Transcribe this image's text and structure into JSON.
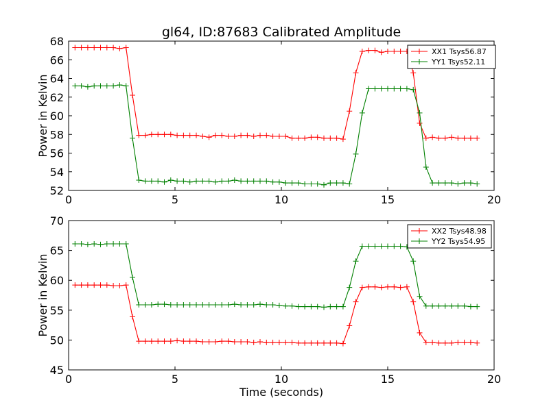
{
  "title": "gl64, ID:87683 Calibrated Amplitude",
  "colors": {
    "red": "#ff0000",
    "green": "#008000"
  },
  "chart_data": [
    {
      "type": "line",
      "xlim": [
        0,
        20
      ],
      "ylim": [
        52,
        68
      ],
      "xticks": [
        0,
        5,
        10,
        15,
        20
      ],
      "yticks": [
        52,
        54,
        56,
        58,
        60,
        62,
        64,
        66,
        68
      ],
      "ylabel": "Power in Kelvin",
      "xlabel": "",
      "legend": "top-right",
      "x": [
        0.3,
        0.6,
        0.9,
        1.2,
        1.5,
        1.8,
        2.1,
        2.4,
        2.7,
        3.0,
        3.3,
        3.6,
        3.9,
        4.2,
        4.5,
        4.8,
        5.1,
        5.4,
        5.7,
        6.0,
        6.3,
        6.6,
        6.9,
        7.2,
        7.5,
        7.8,
        8.1,
        8.4,
        8.7,
        9.0,
        9.3,
        9.6,
        9.9,
        10.2,
        10.5,
        10.8,
        11.1,
        11.4,
        11.7,
        12.0,
        12.3,
        12.6,
        12.9,
        13.2,
        13.5,
        13.8,
        14.1,
        14.4,
        14.7,
        15.0,
        15.3,
        15.6,
        15.9,
        16.2,
        16.5,
        16.8,
        17.1,
        17.4,
        17.7,
        18.0,
        18.3,
        18.6,
        18.9,
        19.2
      ],
      "series": [
        {
          "name": "XX1 Tsys56.87",
          "color": "#ff0000",
          "values": [
            67.3,
            67.3,
            67.3,
            67.3,
            67.3,
            67.3,
            67.3,
            67.2,
            67.3,
            62.2,
            57.9,
            57.9,
            58.0,
            58.0,
            58.0,
            58.0,
            57.9,
            57.9,
            57.9,
            57.9,
            57.8,
            57.7,
            57.9,
            57.9,
            57.8,
            57.8,
            57.9,
            57.9,
            57.8,
            57.9,
            57.9,
            57.8,
            57.8,
            57.8,
            57.6,
            57.6,
            57.6,
            57.7,
            57.7,
            57.6,
            57.6,
            57.6,
            57.5,
            60.5,
            64.6,
            66.9,
            67.0,
            67.0,
            66.8,
            66.9,
            66.9,
            66.9,
            66.9,
            64.6,
            59.2,
            57.6,
            57.7,
            57.6,
            57.6,
            57.7,
            57.6,
            57.6,
            57.6,
            57.6
          ]
        },
        {
          "name": "YY1 Tsys52.11",
          "color": "#008000",
          "values": [
            63.2,
            63.2,
            63.1,
            63.2,
            63.2,
            63.2,
            63.2,
            63.3,
            63.2,
            57.6,
            53.1,
            53.0,
            53.0,
            53.0,
            52.9,
            53.1,
            53.0,
            53.0,
            52.9,
            53.0,
            53.0,
            53.0,
            52.9,
            53.0,
            53.0,
            53.1,
            53.0,
            53.0,
            53.0,
            53.0,
            53.0,
            52.9,
            52.9,
            52.8,
            52.8,
            52.8,
            52.7,
            52.7,
            52.7,
            52.6,
            52.8,
            52.8,
            52.8,
            52.7,
            55.9,
            60.3,
            62.9,
            62.9,
            62.9,
            62.9,
            62.9,
            62.9,
            62.9,
            62.8,
            60.3,
            54.5,
            52.8,
            52.8,
            52.8,
            52.8,
            52.7,
            52.8,
            52.8,
            52.7
          ]
        }
      ]
    },
    {
      "type": "line",
      "xlim": [
        0,
        20
      ],
      "ylim": [
        45,
        70
      ],
      "xticks": [
        0,
        5,
        10,
        15,
        20
      ],
      "yticks": [
        45,
        50,
        55,
        60,
        65,
        70
      ],
      "ylabel": "Power in Kelvin",
      "xlabel": "Time (seconds)",
      "legend": "top-right",
      "x": [
        0.3,
        0.6,
        0.9,
        1.2,
        1.5,
        1.8,
        2.1,
        2.4,
        2.7,
        3.0,
        3.3,
        3.6,
        3.9,
        4.2,
        4.5,
        4.8,
        5.1,
        5.4,
        5.7,
        6.0,
        6.3,
        6.6,
        6.9,
        7.2,
        7.5,
        7.8,
        8.1,
        8.4,
        8.7,
        9.0,
        9.3,
        9.6,
        9.9,
        10.2,
        10.5,
        10.8,
        11.1,
        11.4,
        11.7,
        12.0,
        12.3,
        12.6,
        12.9,
        13.2,
        13.5,
        13.8,
        14.1,
        14.4,
        14.7,
        15.0,
        15.3,
        15.6,
        15.9,
        16.2,
        16.5,
        16.8,
        17.1,
        17.4,
        17.7,
        18.0,
        18.3,
        18.6,
        18.9,
        19.2
      ],
      "series": [
        {
          "name": "XX2 Tsys48.98",
          "color": "#ff0000",
          "values": [
            59.2,
            59.2,
            59.2,
            59.2,
            59.2,
            59.2,
            59.1,
            59.1,
            59.2,
            53.9,
            49.8,
            49.8,
            49.8,
            49.8,
            49.8,
            49.8,
            49.9,
            49.8,
            49.8,
            49.8,
            49.7,
            49.7,
            49.7,
            49.8,
            49.8,
            49.7,
            49.7,
            49.7,
            49.6,
            49.7,
            49.6,
            49.6,
            49.6,
            49.6,
            49.6,
            49.5,
            49.5,
            49.5,
            49.5,
            49.5,
            49.5,
            49.5,
            49.4,
            52.4,
            56.4,
            58.8,
            58.9,
            58.9,
            58.8,
            58.9,
            58.9,
            58.8,
            58.9,
            56.4,
            51.2,
            49.6,
            49.6,
            49.5,
            49.5,
            49.5,
            49.6,
            49.6,
            49.6,
            49.5
          ]
        },
        {
          "name": "YY2 Tsys54.95",
          "color": "#008000",
          "values": [
            66.1,
            66.1,
            66.0,
            66.1,
            66.0,
            66.1,
            66.1,
            66.1,
            66.1,
            60.5,
            55.9,
            55.9,
            55.9,
            56.0,
            56.0,
            55.9,
            55.9,
            55.9,
            55.9,
            55.9,
            55.9,
            55.9,
            55.9,
            55.9,
            55.9,
            56.0,
            55.9,
            55.9,
            55.9,
            56.0,
            55.9,
            55.9,
            55.8,
            55.7,
            55.7,
            55.6,
            55.6,
            55.6,
            55.6,
            55.5,
            55.6,
            55.6,
            55.6,
            58.8,
            63.2,
            65.7,
            65.7,
            65.7,
            65.7,
            65.7,
            65.7,
            65.7,
            65.6,
            63.2,
            57.3,
            55.7,
            55.7,
            55.7,
            55.7,
            55.7,
            55.7,
            55.7,
            55.6,
            55.6
          ]
        }
      ]
    }
  ]
}
